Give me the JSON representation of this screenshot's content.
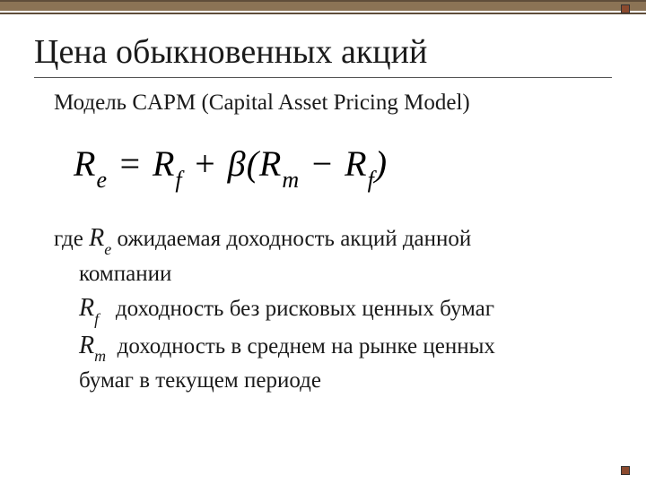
{
  "title": "Цена обыкновенных акций",
  "subtitle": "Модель CAPM (Capital Asset Pricing Model)",
  "formula": {
    "lhs_var": "R",
    "lhs_sub": "e",
    "eq": "=",
    "t1_var": "R",
    "t1_sub": "f",
    "plus": "+",
    "beta": "β",
    "lp": "(",
    "t2_var": "R",
    "t2_sub": "m",
    "minus": "−",
    "t3_var": "R",
    "t3_sub": "f",
    "rp": ")"
  },
  "defs": {
    "where": "где",
    "re_var": "R",
    "re_sub": "e",
    "re_text": "ожидаемая доходность акций данной",
    "re_text2": "компании",
    "rf_var": "R",
    "rf_sub": "f",
    "rf_text": "доходность без рисковых ценных бумаг",
    "rm_var": "R",
    "rm_sub": "m",
    "rm_text": "доходность в среднем на рынке ценных",
    "rm_text2": "бумаг в текущем периоде"
  },
  "colors": {
    "bar_thick": "#8b7355",
    "bar_thin": "#5f4d3a",
    "bullet": "#8b4a2e",
    "text": "#1a1a1a",
    "bg": "#ffffff"
  },
  "fonts": {
    "title_size": 38,
    "body_size": 25,
    "formula_size": 40,
    "family": "Times New Roman"
  }
}
